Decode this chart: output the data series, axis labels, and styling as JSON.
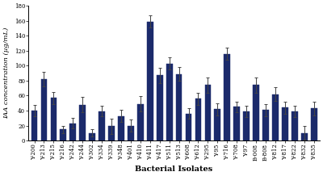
{
  "categories": [
    "Y-200",
    "Y-213",
    "Y-215",
    "Y-216",
    "Y-242",
    "Y-244",
    "Y-302",
    "Y-334",
    "Y-339",
    "Y-348",
    "Y-401",
    "Y-410",
    "Y-411",
    "Y-417",
    "Y-511",
    "Y-513",
    "Y-608",
    "Y-612",
    "Y-295",
    "Y-95",
    "Y-716",
    "Y-708",
    "Y-97",
    "B-008",
    "B-808",
    "Y-812",
    "Y-817",
    "Y-822",
    "Y-832",
    "Y-835"
  ],
  "values": [
    40,
    82,
    57,
    15,
    23,
    48,
    10,
    39,
    19,
    33,
    20,
    49,
    159,
    87,
    103,
    89,
    36,
    56,
    74,
    42,
    116,
    45,
    39,
    74,
    41,
    62,
    44,
    39,
    10,
    43
  ],
  "errors": [
    8,
    10,
    8,
    5,
    7,
    10,
    5,
    7,
    10,
    8,
    8,
    10,
    8,
    10,
    8,
    9,
    7,
    8,
    10,
    8,
    8,
    7,
    8,
    10,
    8,
    9,
    8,
    8,
    9,
    9
  ],
  "bar_color": "#1b2a6b",
  "edge_color": "#1b2a6b",
  "xlabel": "Bacterial Isolates",
  "ylabel": "IAA concentration (µg/mL)",
  "ylim": [
    0,
    180
  ],
  "yticks": [
    0,
    20,
    40,
    60,
    80,
    100,
    120,
    140,
    160,
    180
  ],
  "background_color": "#ffffff",
  "xlabel_fontsize": 7,
  "ylabel_fontsize": 6,
  "tick_fontsize": 5,
  "bar_width": 0.65
}
